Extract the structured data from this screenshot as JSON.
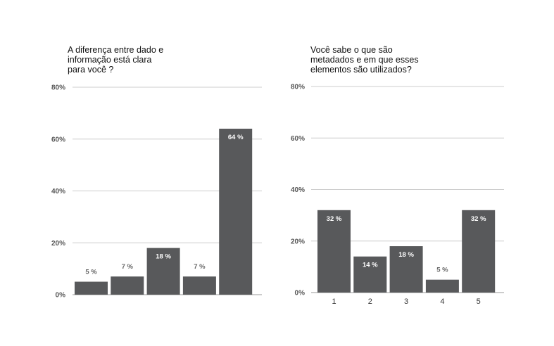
{
  "colors": {
    "bar": "#58595b",
    "grid": "#cccccc",
    "axis": "#999999",
    "label_inside": "#ffffff",
    "label_outside": "#666666"
  },
  "chart_data": [
    {
      "type": "bar",
      "title": "A diferença entre dado e\ninformação está clara\npara você ?",
      "categories": [
        "",
        "",
        "",
        "",
        ""
      ],
      "values": [
        5,
        7,
        18,
        7,
        64
      ],
      "data_labels": [
        "5 %",
        "7 %",
        "18 %",
        "7 %",
        "64 %"
      ],
      "yticks": [
        "0%",
        "20%",
        "40%",
        "60%",
        "80%"
      ],
      "ylim": [
        0,
        80
      ],
      "grid": true,
      "xlabel": "",
      "ylabel": ""
    },
    {
      "type": "bar",
      "title": "Você sabe o que são\nmetadados e em que esses\nelementos são utilizados?",
      "categories": [
        "1",
        "2",
        "3",
        "4",
        "5"
      ],
      "values": [
        32,
        14,
        18,
        5,
        32
      ],
      "data_labels": [
        "32 %",
        "14 %",
        "18 %",
        "5 %",
        "32 %"
      ],
      "yticks": [
        "0%",
        "20%",
        "40%",
        "60%",
        "80%"
      ],
      "ylim": [
        0,
        80
      ],
      "grid": true,
      "xlabel": "",
      "ylabel": ""
    }
  ]
}
